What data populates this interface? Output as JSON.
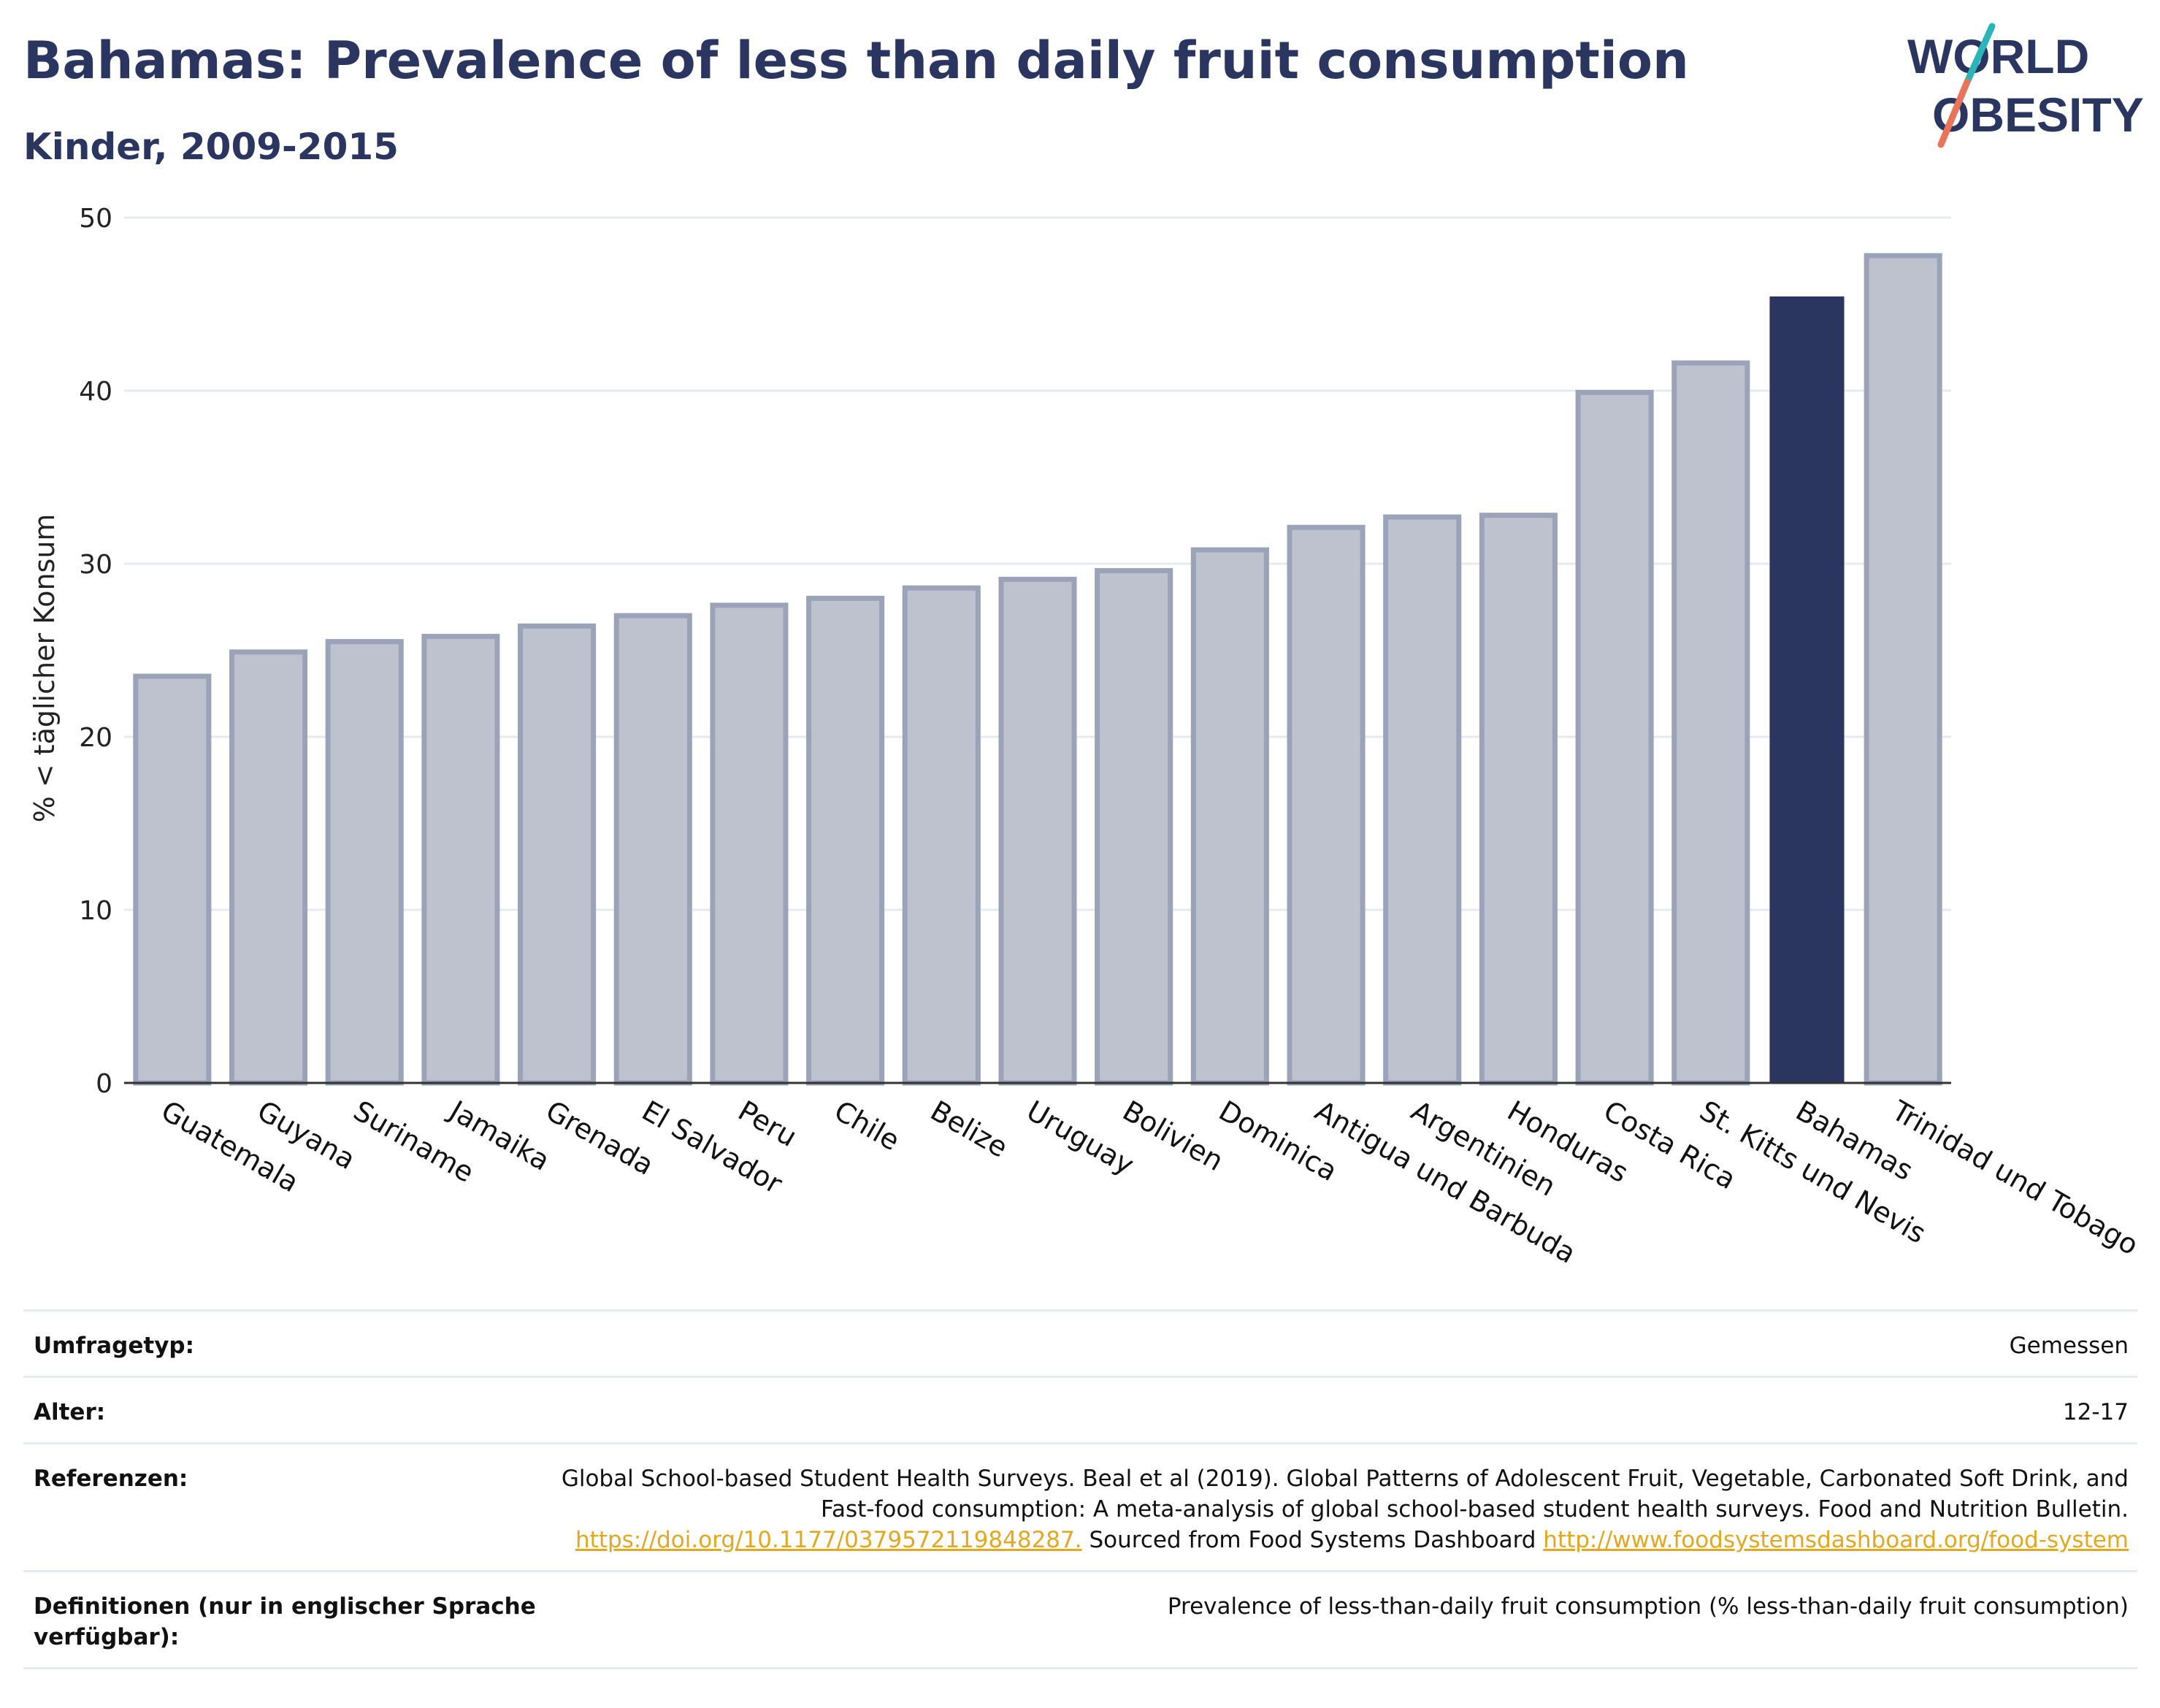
{
  "header": {
    "title": "Bahamas: Prevalence of less than daily fruit consumption",
    "subtitle": "Kinder, 2009-2015"
  },
  "logo": {
    "line1": "WORLD",
    "line2": "OBESITY",
    "colors": {
      "text": "#2a3560",
      "slash_top": "#2bb5b8",
      "slash_bottom": "#e8745a"
    }
  },
  "chart_data": {
    "type": "bar",
    "ylabel": "% < täglicher Konsum",
    "xlabel": "",
    "ylim": [
      0,
      50
    ],
    "yticks": [
      0,
      10,
      20,
      30,
      40,
      50
    ],
    "grid": true,
    "categories": [
      "Guatemala",
      "Guyana",
      "Suriname",
      "Jamaika",
      "Grenada",
      "El Salvador",
      "Peru",
      "Chile",
      "Belize",
      "Uruguay",
      "Bolivien",
      "Dominica",
      "Antigua und Barbuda",
      "Argentinien",
      "Honduras",
      "Costa Rica",
      "St. Kitts und Nevis",
      "Bahamas",
      "Trinidad und Tobago"
    ],
    "values": [
      23.5,
      24.9,
      25.5,
      25.8,
      26.4,
      27.0,
      27.6,
      28.0,
      28.6,
      29.1,
      29.6,
      30.8,
      32.1,
      32.7,
      32.8,
      39.9,
      41.6,
      45.4,
      47.8
    ],
    "highlight": "Bahamas",
    "colors": {
      "bar": "#bec2cf",
      "bar_border": "#9ba3b9",
      "highlight": "#2a3560",
      "grid": "#e6e9ee",
      "axis": "#333333"
    }
  },
  "info": {
    "rows": [
      {
        "label": "Umfragetyp:",
        "value": "Gemessen"
      },
      {
        "label": "Alter:",
        "value": "12-17"
      }
    ],
    "references": {
      "label": "Referenzen:",
      "text1": "Global School-based Student Health Surveys. Beal et al (2019). Global Patterns of Adolescent Fruit, Vegetable, Carbonated Soft Drink, and Fast-food consumption: A meta-analysis of global school-based student health surveys. Food and Nutrition Bulletin. ",
      "link1": "https://doi.org/10.1177/0379572119848287.",
      "text2": " Sourced from Food Systems Dashboard ",
      "link2": "http://www.foodsystemsdashboard.org/food-system"
    },
    "definition": {
      "label": "Definitionen (nur in englischer Sprache verfügbar):",
      "value": "Prevalence of less-than-daily fruit consumption (% less-than-daily fruit consumption)"
    }
  }
}
